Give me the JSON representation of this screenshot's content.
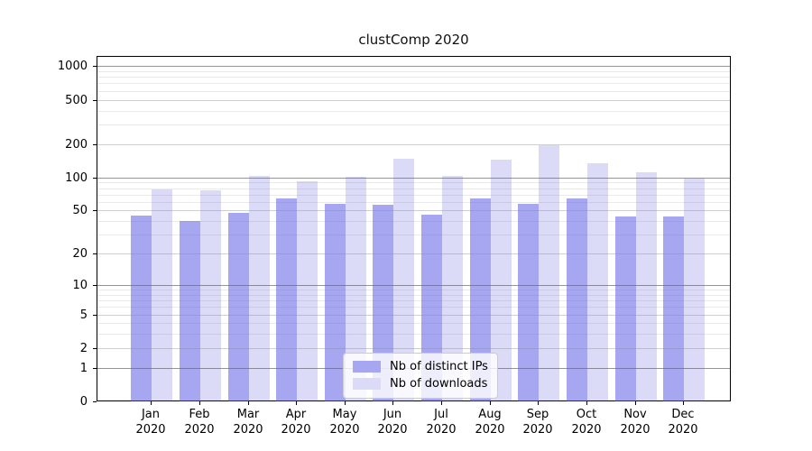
{
  "title": "clustComp 2020",
  "chart_data": {
    "type": "bar",
    "title": "clustComp 2020",
    "categories": [
      "Jan 2020",
      "Feb 2020",
      "Mar 2020",
      "Apr 2020",
      "May 2020",
      "Jun 2020",
      "Jul 2020",
      "Aug 2020",
      "Sep 2020",
      "Oct 2020",
      "Nov 2020",
      "Dec 2020"
    ],
    "series": [
      {
        "name": "Nb of distinct IPs",
        "color": "#a6a6f1",
        "values": [
          45,
          40,
          48,
          65,
          58,
          57,
          46,
          65,
          58,
          65,
          44,
          44
        ]
      },
      {
        "name": "Nb of downloads",
        "color": "#dbdbf7",
        "values": [
          78,
          76,
          103,
          92,
          101,
          148,
          103,
          145,
          195,
          133,
          112,
          98
        ]
      }
    ],
    "yscale": "log1p",
    "ytick_values": [
      0,
      1,
      2,
      5,
      10,
      20,
      50,
      100,
      200,
      500,
      1000
    ],
    "ytick_labels": [
      "0",
      "1",
      "2",
      "5",
      "10",
      "20",
      "50",
      "100",
      "200",
      "500",
      "1000"
    ],
    "ylim": [
      0,
      1236
    ],
    "grid": "on",
    "legend_position": "lower center"
  }
}
